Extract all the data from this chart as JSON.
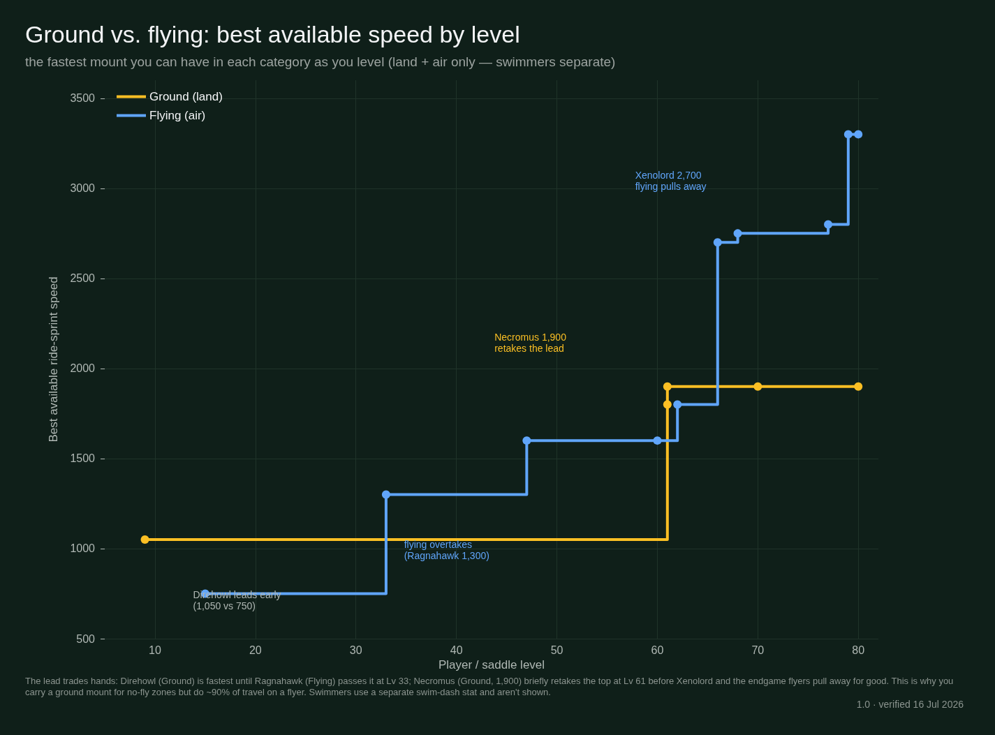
{
  "chart_data": {
    "type": "step",
    "title": "Ground vs. flying: best available speed by level",
    "subtitle": "the fastest mount you can have in each category as you level (land + air only — swimmers separate)",
    "xlabel": "Player / saddle level",
    "ylabel": "Best available ride-sprint speed",
    "series": [
      {
        "name": "Ground (land)",
        "color": "#fbbf24",
        "x": [
          9,
          61,
          61,
          70,
          80
        ],
        "values": [
          1050,
          1800,
          1900,
          1900,
          1900
        ]
      },
      {
        "name": "Flying (air)",
        "color": "#60a5fa",
        "x": [
          15,
          33,
          47,
          60,
          62,
          66,
          68,
          77,
          79,
          80
        ],
        "values": [
          750,
          1300,
          1600,
          1600,
          1800,
          2700,
          2750,
          2800,
          3300,
          3300
        ]
      }
    ],
    "xlim": [
      5,
      82
    ],
    "xticks": [
      10,
      20,
      30,
      40,
      50,
      60,
      70,
      80
    ],
    "ylim": [
      500,
      3600
    ],
    "yticks": [
      500,
      1000,
      1500,
      2000,
      2500,
      3000,
      3500
    ],
    "grid": true,
    "legend": "top left",
    "marker": "circle",
    "line_style": "solid",
    "annotations": [
      "Direhowl leads early\n(1,050 vs 750)",
      "flying overtakes\n(Ragnahawk 1,300)",
      "Necromus 1,900\nretakes the lead",
      "Xenolord 2,700\nflying pulls away",
      "The lead trades hands: Direhowl (Ground) is fastest until Ragnahawk (Flying) passes it at Lv 33; Necromus (Ground, 1,900) briefly retakes the top at Lv 61 before Xenolord and the endgame flyers pull away for good. This is why you carry a ground mount for no-fly zones but do ~90% of travel on a flyer. Swimmers use a separate swim-dash stat and aren't shown.",
      "1.0 · verified 16 Jul 2026"
    ]
  }
}
